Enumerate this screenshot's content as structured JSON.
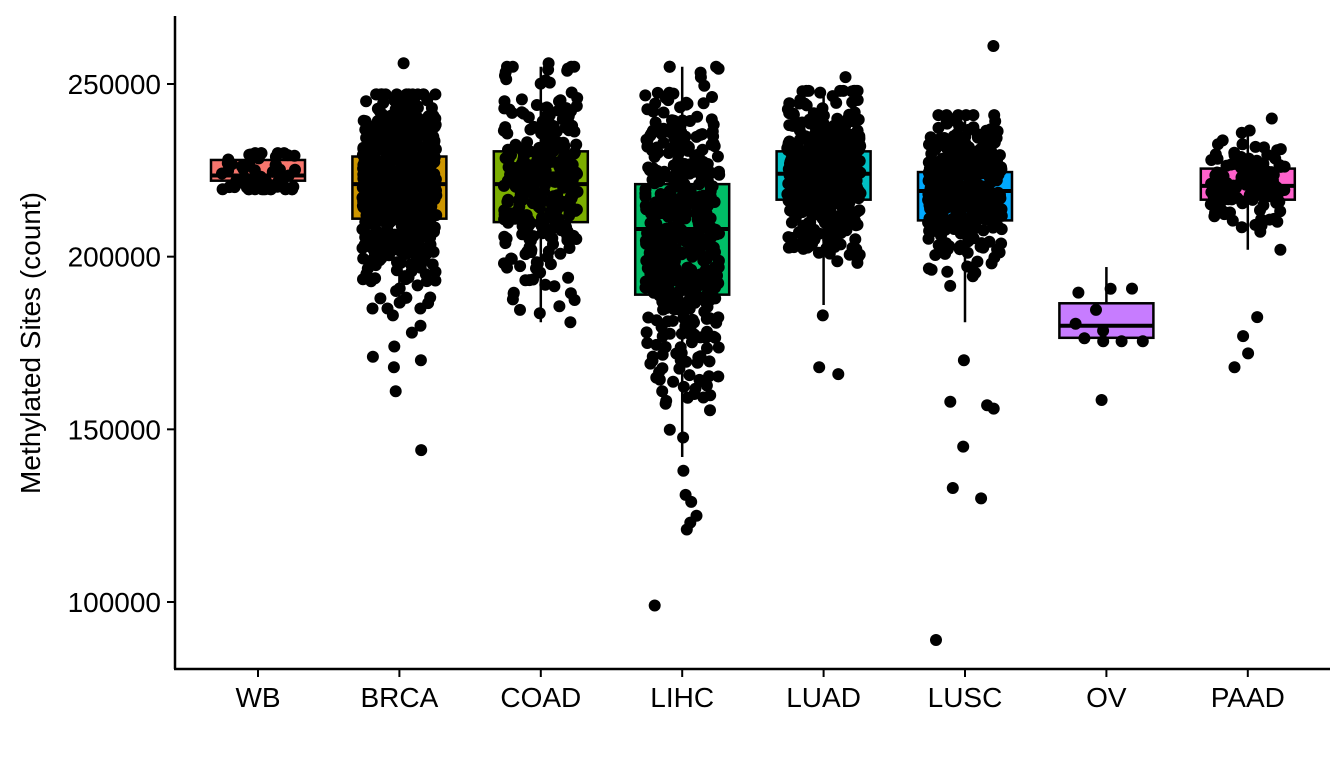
{
  "chart_data": {
    "type": "box",
    "title": "",
    "xlabel": "",
    "ylabel": "Methylated Sites (count)",
    "ylim": [
      80000,
      270000
    ],
    "y_ticks": [
      100000,
      150000,
      200000,
      250000
    ],
    "y_tick_labels": [
      "100000",
      "150000",
      "200000",
      "250000"
    ],
    "grid": false,
    "legend": "none",
    "categories": [
      "WB",
      "BRCA",
      "COAD",
      "LIHC",
      "LUAD",
      "LUSC",
      "OV",
      "PAAD"
    ],
    "colors": [
      "#F8766D",
      "#CD9600",
      "#7CAE00",
      "#00BE67",
      "#00BFC4",
      "#00A9FF",
      "#C77CFF",
      "#FF61CC"
    ],
    "boxes": [
      {
        "category": "WB",
        "whisker_low": 219500,
        "q1": 222000,
        "median": 223500,
        "q3": 228000,
        "whisker_high": 230000
      },
      {
        "category": "BRCA",
        "whisker_low": 185000,
        "q1": 211000,
        "median": 221000,
        "q3": 229000,
        "whisker_high": 247000
      },
      {
        "category": "COAD",
        "whisker_low": 181000,
        "q1": 210000,
        "median": 221000,
        "q3": 230500,
        "whisker_high": 255000
      },
      {
        "category": "LIHC",
        "whisker_low": 142000,
        "q1": 189000,
        "median": 208000,
        "q3": 221000,
        "whisker_high": 255000
      },
      {
        "category": "LUAD",
        "whisker_low": 186000,
        "q1": 216500,
        "median": 224000,
        "q3": 230500,
        "whisker_high": 248000
      },
      {
        "category": "LUSC",
        "whisker_low": 181000,
        "q1": 210500,
        "median": 219000,
        "q3": 224500,
        "whisker_high": 241000
      },
      {
        "category": "OV",
        "whisker_low": 175500,
        "q1": 176500,
        "median": 180000,
        "q3": 186500,
        "whisker_high": 197000
      },
      {
        "category": "PAAD",
        "whisker_low": 202000,
        "q1": 216500,
        "median": 220500,
        "q3": 225500,
        "whisker_high": 237500
      }
    ],
    "outliers": [
      {
        "category": "BRCA",
        "values": [
          144000,
          161000,
          168000,
          170000,
          171000,
          174000,
          178000,
          180000,
          183000,
          256000
        ]
      },
      {
        "category": "COAD",
        "values": [
          256000
        ]
      },
      {
        "category": "LIHC",
        "values": [
          99000,
          121000,
          123000,
          125000,
          129000,
          131000,
          138000
        ]
      },
      {
        "category": "LUAD",
        "values": [
          166000,
          168000,
          183000,
          252000
        ]
      },
      {
        "category": "LUSC",
        "values": [
          89000,
          130000,
          133000,
          145000,
          156000,
          157000,
          158000,
          170000,
          261000
        ]
      },
      {
        "category": "OV",
        "values": [
          158500
        ]
      },
      {
        "category": "PAAD",
        "values": [
          168000,
          172000,
          177000,
          182500,
          240000
        ]
      }
    ],
    "jitter_points_per_group": [
      60,
      700,
      300,
      450,
      500,
      350,
      10,
      130
    ],
    "point_color": "#000000"
  }
}
